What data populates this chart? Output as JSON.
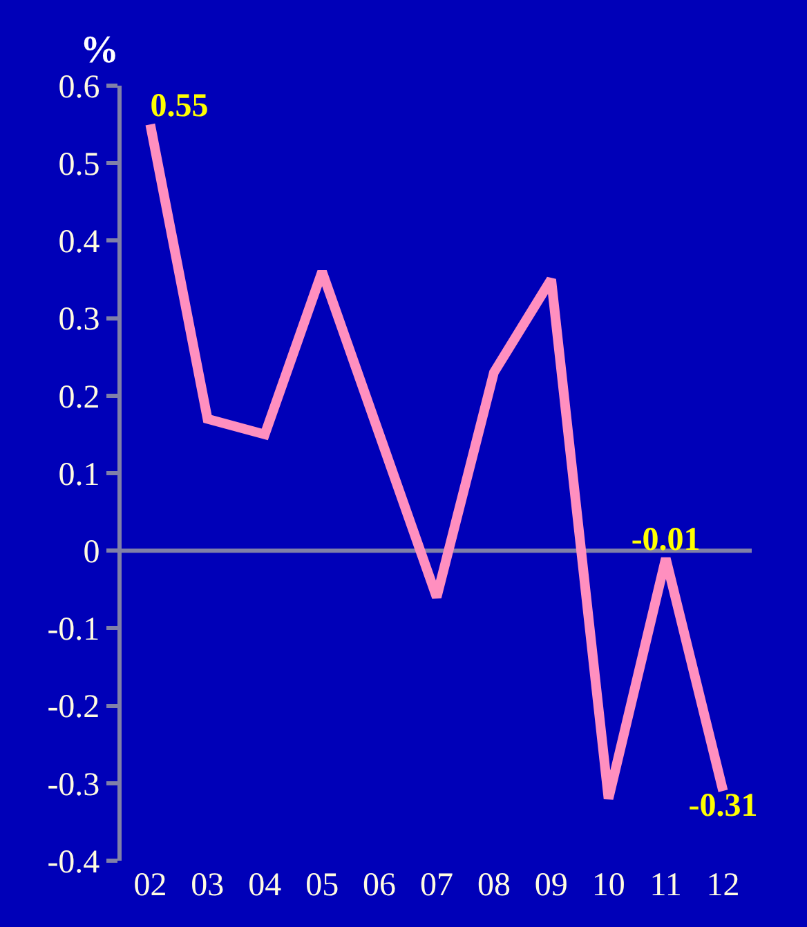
{
  "chart_data": {
    "type": "line",
    "ylabel": "%",
    "categories": [
      "02",
      "03",
      "04",
      "05",
      "06",
      "07",
      "08",
      "09",
      "10",
      "11",
      "12"
    ],
    "series": [
      {
        "color": "#ff8fbf",
        "values": [
          0.55,
          0.17,
          0.15,
          0.36,
          0.15,
          -0.06,
          0.23,
          0.35,
          -0.32,
          -0.01,
          -0.31
        ],
        "value_labels": [
          "0.55",
          null,
          null,
          null,
          null,
          null,
          null,
          null,
          null,
          "-0.01",
          "-0.31"
        ]
      }
    ],
    "ylim": [
      -0.4,
      0.6
    ],
    "yticks": [
      -0.4,
      -0.3,
      -0.2,
      -0.1,
      0,
      0.1,
      0.2,
      0.3,
      0.4,
      0.5,
      0.6
    ],
    "ref_lines": [
      {
        "axis": "y",
        "value": 0,
        "color": "#8080a8",
        "line_style": "solid"
      }
    ],
    "grid": false,
    "legend": false,
    "marker": "none",
    "line_style": "solid"
  }
}
